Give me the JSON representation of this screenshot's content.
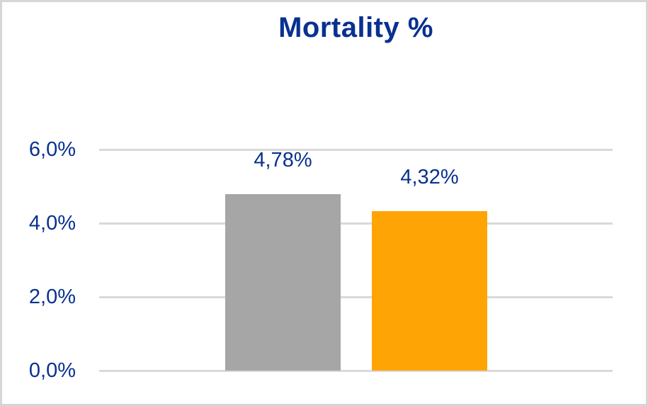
{
  "window": {
    "background": "#ffffff",
    "border_color": "#d6d6d6"
  },
  "colors": {
    "text_navy": "#08318f",
    "gridline": "#d9d9d9",
    "bar_gray": "#a6a6a6",
    "bar_orange": "#ffa405"
  },
  "chart_data": {
    "type": "bar",
    "title": "Mortality %",
    "categories": [
      "",
      ""
    ],
    "values": [
      4.78,
      4.32
    ],
    "value_labels": [
      "4,78%",
      "4,32%"
    ],
    "bar_colors": [
      "#a6a6a6",
      "#ffa405"
    ],
    "xlabel": "",
    "ylabel": "",
    "ylim": [
      0,
      6
    ],
    "yticks": [
      0,
      2,
      4,
      6
    ],
    "ytick_labels": [
      "0,0%",
      "2,0%",
      "4,0%",
      "6,0%"
    ],
    "grid": true,
    "legend": false,
    "decimal_separator": ","
  }
}
